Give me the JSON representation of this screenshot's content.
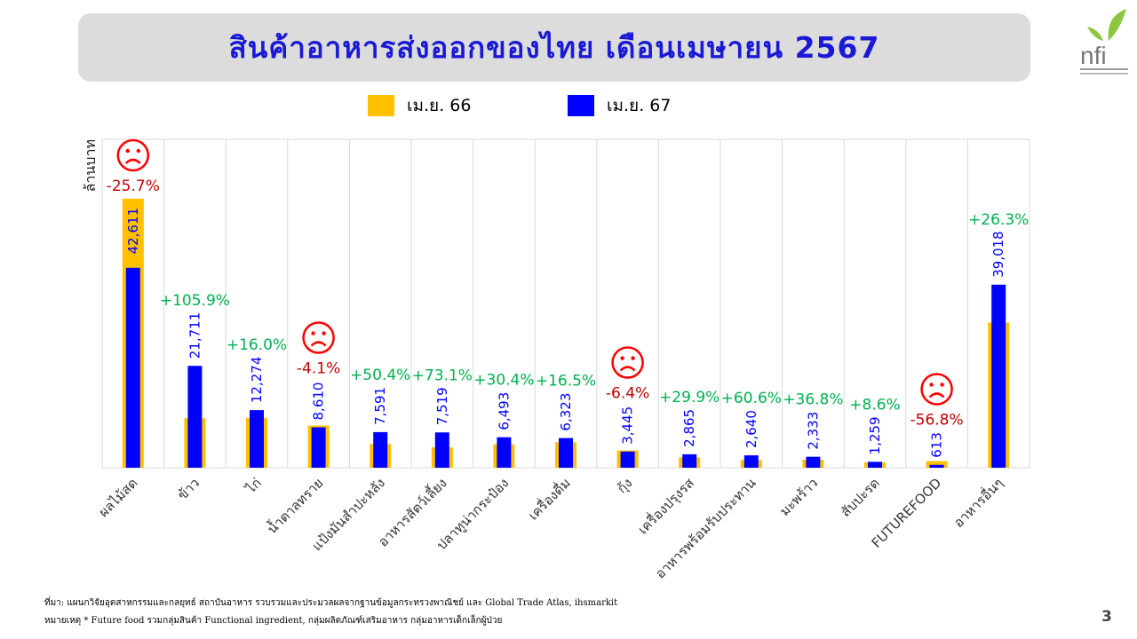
{
  "title": "สินค้าอาหารส่งออกของไทย เดือนเมษายน 2567",
  "logo_text": "nfi",
  "legend": [
    {
      "label": "เม.ย. 66",
      "color": "#FFC000"
    },
    {
      "label": "เม.ย. 67",
      "color": "#0000FF"
    }
  ],
  "chart_data": {
    "type": "bar",
    "ylabel": "ล้านบาท",
    "categories": [
      "ผลไม้สด",
      "ข้าว",
      "ไก่",
      "น้ำตาลทราย",
      "แป้งมันสำปะหลัง",
      "อาหารสัตว์เลี้ยง",
      "ปลาทูน่ากระป๋อง",
      "เครื่องดื่ม",
      "กุ้ง",
      "เครื่องปรุงรส",
      "อาหารพร้อมรับประทาน",
      "มะพร้าว",
      "สับปะรด",
      "FUTUREFOOD",
      "อาหารอื่นๆ"
    ],
    "series": [
      {
        "name": "เม.ย. 66",
        "color": "#FFC000",
        "values": [
          57350,
          10545,
          10581,
          8977,
          5047,
          4343,
          4980,
          5428,
          3681,
          2206,
          1644,
          1705,
          1159,
          1418,
          30940
        ]
      },
      {
        "name": "เม.ย. 67",
        "color": "#0000FF",
        "values": [
          42611,
          21711,
          12274,
          8610,
          7591,
          7519,
          6493,
          6323,
          3445,
          2865,
          2640,
          2333,
          1259,
          613,
          39018
        ]
      }
    ],
    "value_labels": [
      "42,611",
      "21,711",
      "12,274",
      "8,610",
      "7,591",
      "7,519",
      "6,493",
      "6,323",
      "3,445",
      "2,865",
      "2,640",
      "2,333",
      "1,259",
      "613",
      "39,018"
    ],
    "changes": [
      "-25.7%",
      "+105.9%",
      "+16.0%",
      "-4.1%",
      "+50.4%",
      "+73.1%",
      "+30.4%",
      "+16.5%",
      "-6.4%",
      "+29.9%",
      "+60.6%",
      "+36.8%",
      "+8.6%",
      "-56.8%",
      "+26.3%"
    ],
    "sad_face": [
      true,
      false,
      false,
      true,
      false,
      false,
      false,
      false,
      true,
      false,
      false,
      false,
      false,
      true,
      false
    ],
    "ylim": [
      0,
      70000
    ],
    "grid": "vertical",
    "colors": {
      "positive": "#00B050",
      "negative": "#C00000",
      "face": "#FF0000",
      "value_label": "#0000FF"
    }
  },
  "footnotes": [
    "ที่มา: แผนกวิจัยอุตสาหกรรมและกลยุทธ์ สถาบันอาหาร รวบรวมและประมวลผลจากฐานข้อมูลกระทรวงพาณิชย์ และ Global Trade Atlas, ihsmarkit",
    "หมายเหตุ * Future food รวมกลุ่มสินค้า Functional ingredient, กลุ่มผลิตภัณฑ์เสริมอาหาร กลุ่มอาหารเด็กเล็กผู้ป่วย"
  ],
  "page_number": "3"
}
